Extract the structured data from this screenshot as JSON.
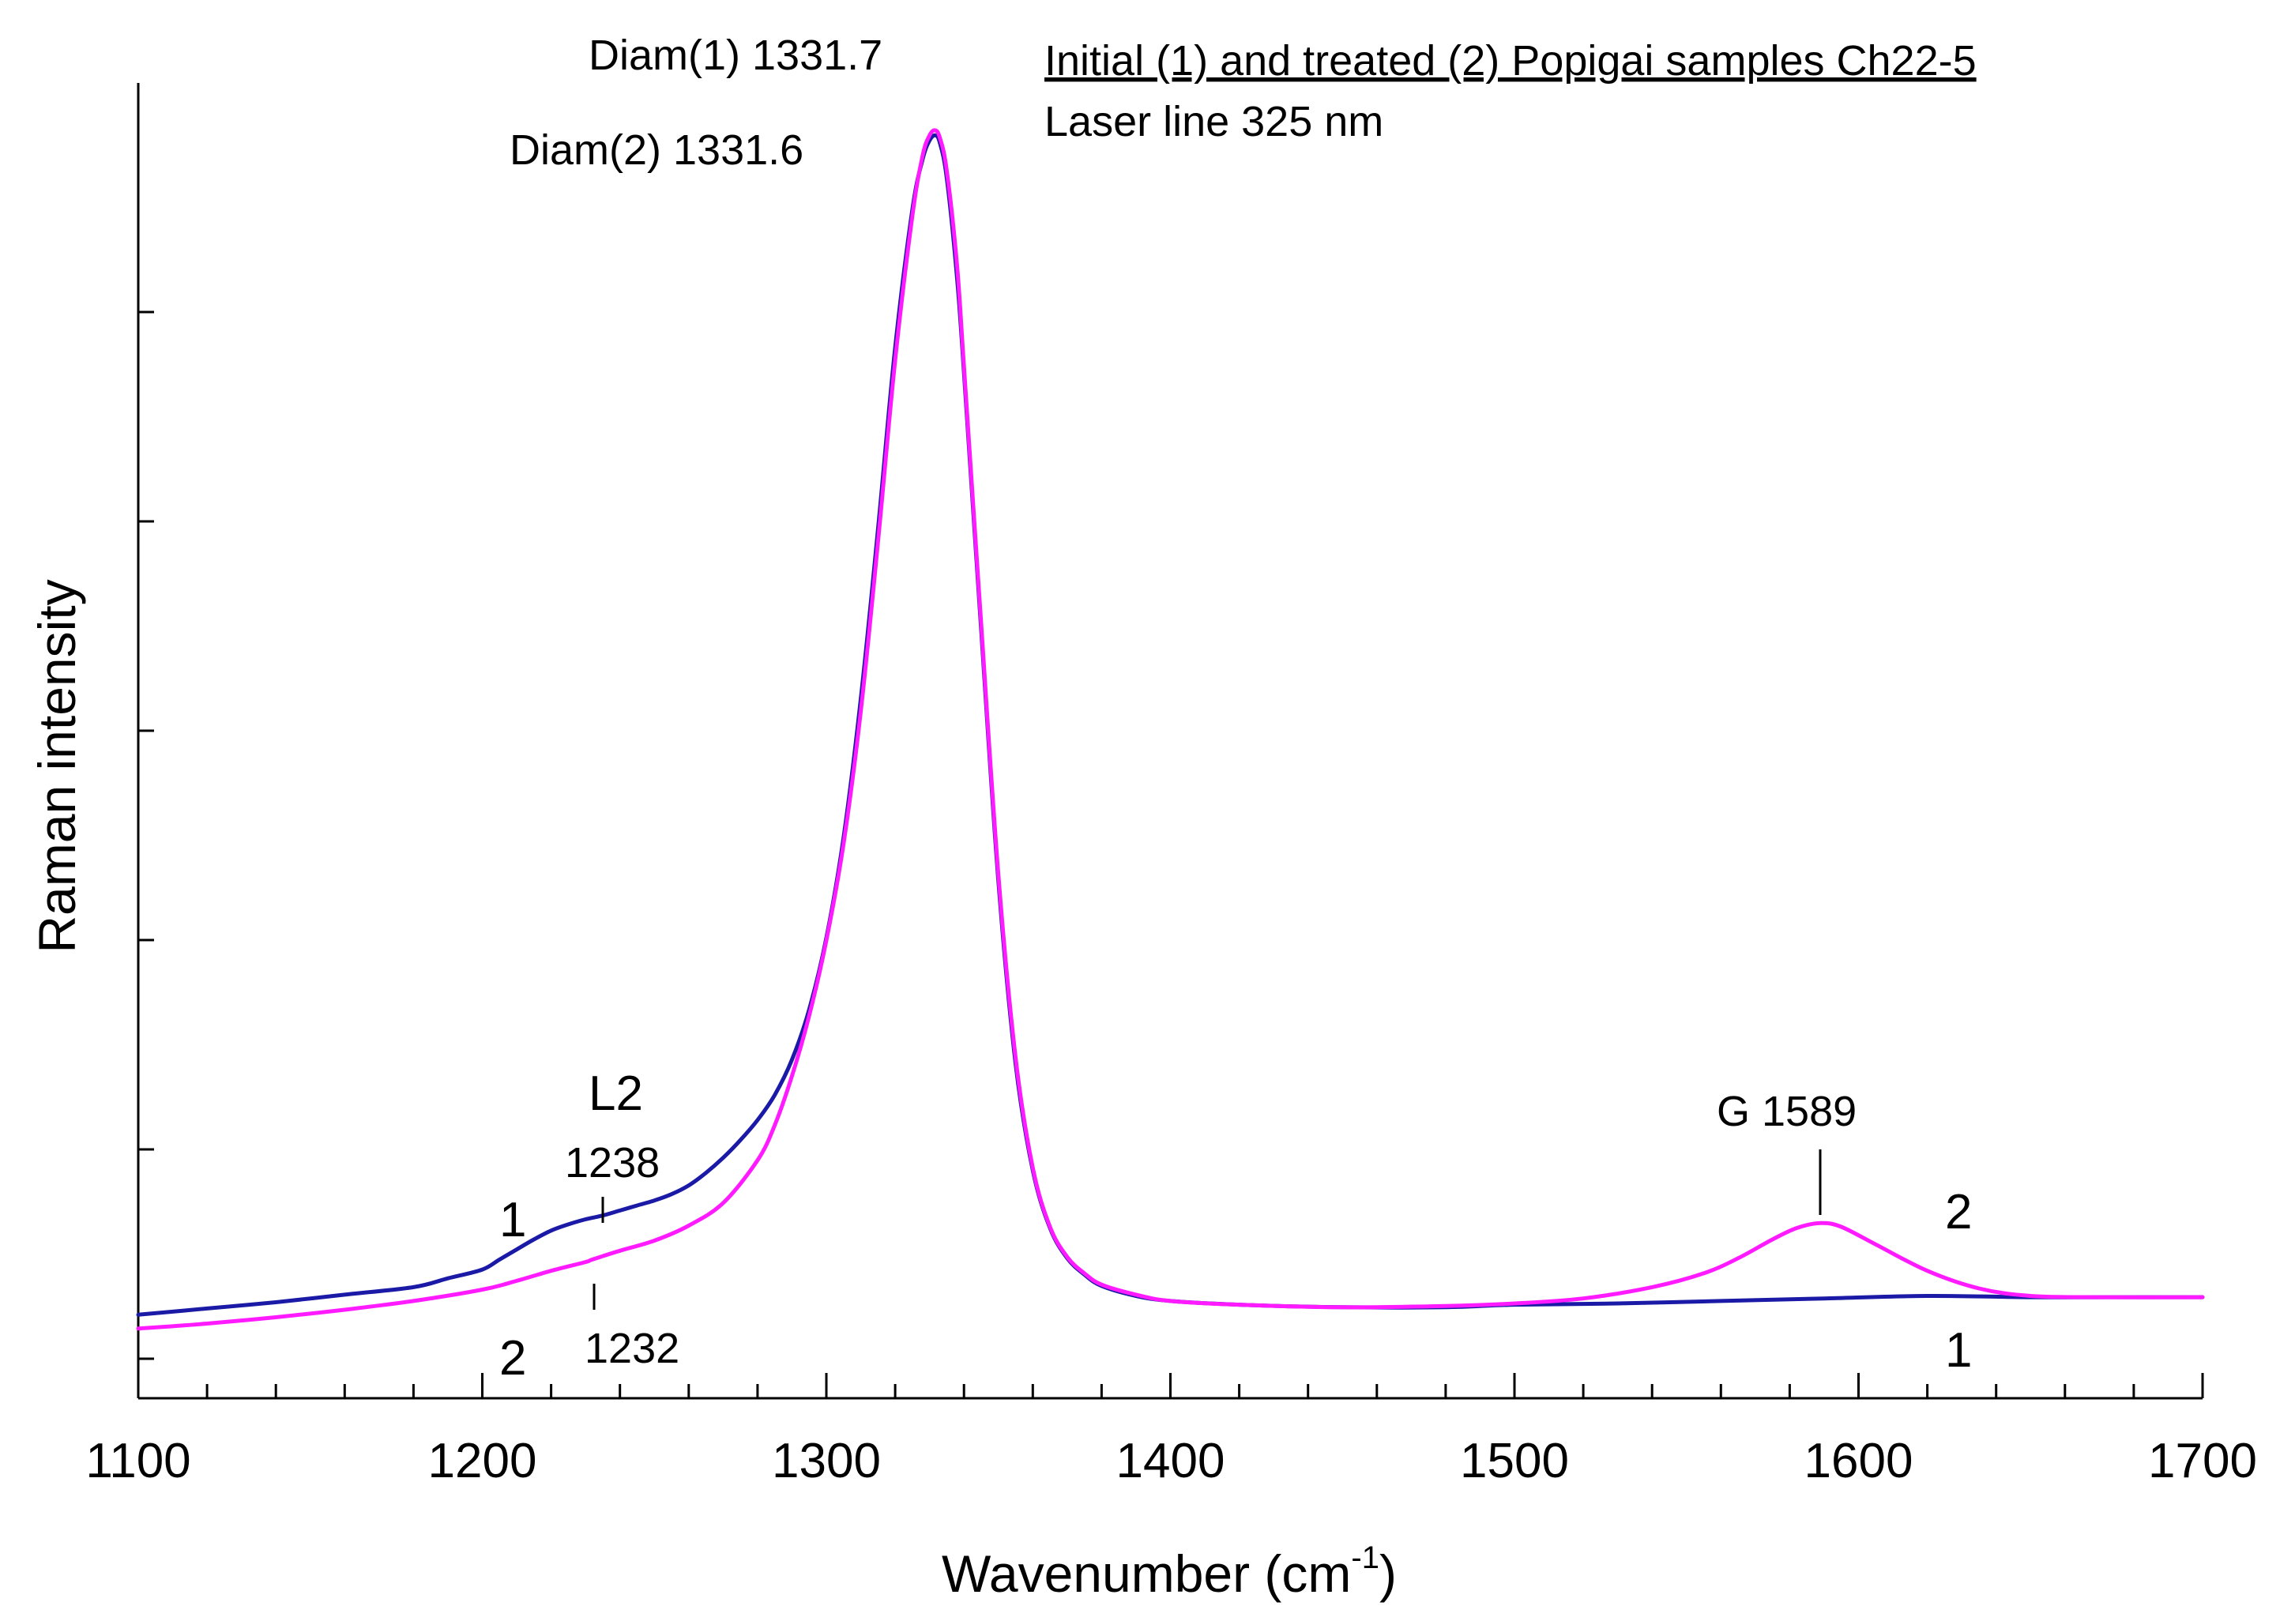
{
  "chart_data": {
    "type": "line",
    "title": "Initial (1) and treated (2) Popigai samples Ch22-5",
    "subtitle": "Laser line 325 nm",
    "xlabel": "Wavenumber (cm",
    "xlabel_sup": "-1",
    "xlabel_end": ")",
    "ylabel": "Raman intensity",
    "xlim": [
      1100,
      1700
    ],
    "ylim": [
      0,
      100
    ],
    "x_ticks": [
      1100,
      1200,
      1300,
      1400,
      1500,
      1600,
      1700
    ],
    "x_tick_labels": [
      "1100",
      "1200",
      "1300",
      "1400",
      "1500",
      "1600",
      "1700"
    ],
    "x_minor_step": 20,
    "y_ticks": [
      0,
      16.67,
      33.33,
      50,
      66.67,
      83.33
    ],
    "grid": false,
    "series": [
      {
        "name": "1",
        "color": "#1a1aa6",
        "x": [
          1100,
          1120,
          1140,
          1160,
          1180,
          1190,
          1200,
          1205,
          1210,
          1215,
          1220,
          1225,
          1230,
          1235,
          1240,
          1245,
          1250,
          1255,
          1260,
          1265,
          1270,
          1275,
          1280,
          1285,
          1290,
          1295,
          1300,
          1305,
          1310,
          1315,
          1320,
          1325,
          1328,
          1330,
          1331.7,
          1333,
          1335,
          1338,
          1340,
          1345,
          1350,
          1355,
          1360,
          1365,
          1370,
          1375,
          1380,
          1390,
          1400,
          1420,
          1450,
          1480,
          1500,
          1530,
          1560,
          1590,
          1620,
          1650,
          1680,
          1700
        ],
        "y": [
          3.5,
          4.0,
          4.5,
          5.1,
          5.7,
          6.4,
          7.1,
          7.9,
          8.7,
          9.5,
          10.2,
          10.7,
          11.1,
          11.4,
          11.8,
          12.2,
          12.6,
          13.1,
          13.8,
          14.8,
          16.0,
          17.4,
          19.0,
          21.0,
          23.8,
          27.8,
          33.5,
          41.5,
          52.5,
          66.0,
          80.5,
          91.5,
          95.5,
          97.0,
          97.4,
          96.8,
          94.0,
          86.0,
          78.5,
          58.0,
          38.0,
          23.5,
          15.0,
          10.4,
          8.0,
          6.7,
          5.8,
          5.0,
          4.6,
          4.3,
          4.1,
          4.1,
          4.3,
          4.4,
          4.6,
          4.8,
          5.0,
          4.9,
          4.9,
          4.9
        ]
      },
      {
        "name": "2",
        "color": "#ff1aff",
        "x": [
          1100,
          1120,
          1140,
          1160,
          1180,
          1200,
          1210,
          1220,
          1230,
          1232,
          1240,
          1250,
          1260,
          1270,
          1280,
          1285,
          1290,
          1295,
          1300,
          1305,
          1310,
          1315,
          1320,
          1325,
          1328,
          1330,
          1331.6,
          1333,
          1335,
          1338,
          1340,
          1345,
          1350,
          1355,
          1360,
          1365,
          1370,
          1375,
          1380,
          1390,
          1400,
          1420,
          1450,
          1480,
          1500,
          1520,
          1540,
          1555,
          1565,
          1575,
          1582,
          1589,
          1595,
          1605,
          1620,
          1635,
          1650,
          1670,
          1700
        ],
        "y": [
          2.4,
          2.8,
          3.3,
          3.9,
          4.6,
          5.5,
          6.2,
          7.0,
          7.7,
          7.9,
          8.6,
          9.4,
          10.6,
          12.4,
          15.8,
          18.6,
          22.5,
          27.3,
          33.3,
          41.0,
          51.5,
          65.0,
          79.5,
          91.0,
          95.8,
          97.4,
          97.8,
          97.2,
          94.6,
          87.0,
          79.0,
          58.5,
          38.5,
          24.0,
          15.2,
          10.5,
          8.1,
          6.8,
          5.9,
          5.1,
          4.6,
          4.3,
          4.1,
          4.2,
          4.4,
          4.8,
          5.7,
          6.8,
          8.0,
          9.5,
          10.4,
          10.8,
          10.5,
          9.1,
          7.0,
          5.6,
          5.0,
          4.9,
          4.9
        ]
      }
    ],
    "annotations": {
      "diam1": "Diam(1) 1331.7",
      "diam2": "Diam(2) 1331.6",
      "l2_label": "L2",
      "l2_1": "1238",
      "l2_2": "1232",
      "g_label": "G 1589",
      "curve1_left": "1",
      "curve2_left": "2",
      "curve2_right": "2",
      "curve1_right": "1"
    }
  }
}
